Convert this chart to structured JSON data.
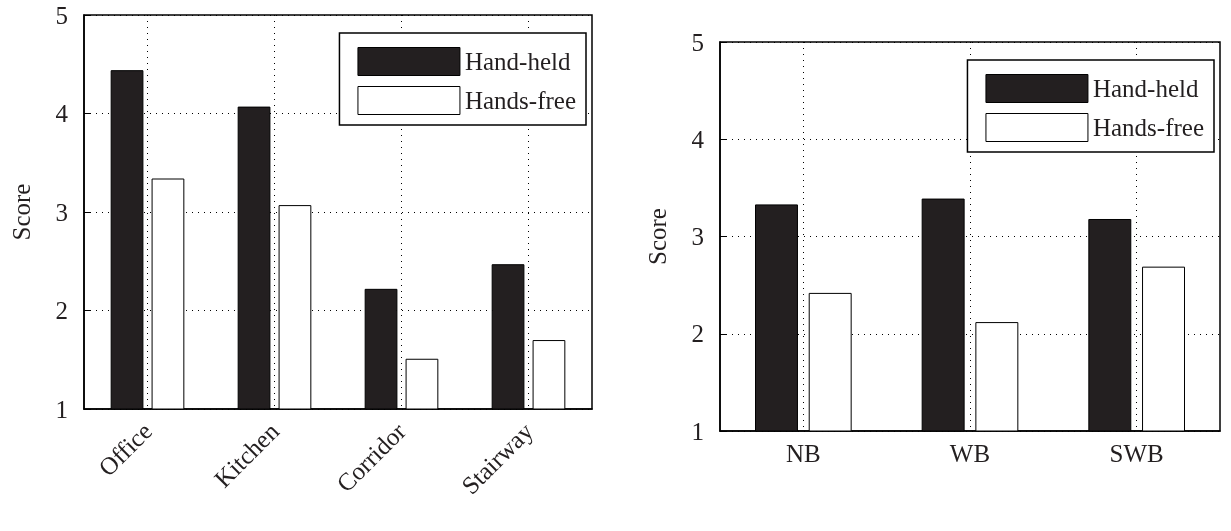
{
  "chart_data": [
    {
      "type": "bar",
      "ylabel": "Score",
      "categories": [
        "Office",
        "Kitchen",
        "Corridor",
        "Stairway"
      ],
      "series": [
        {
          "name": "Hand-held",
          "color": "#231f20",
          "values": [
            4.44,
            4.07,
            2.22,
            2.47
          ]
        },
        {
          "name": "Hands-free",
          "color": "#ffffff",
          "values": [
            3.34,
            3.07,
            1.51,
            1.7
          ]
        }
      ],
      "ylim": [
        1,
        5
      ],
      "yticks": [
        1,
        2,
        3,
        4,
        5
      ],
      "grid": true,
      "legend": "top right"
    },
    {
      "type": "bar",
      "ylabel": "Score",
      "categories": [
        "NB",
        "WB",
        "SWB"
      ],
      "series": [
        {
          "name": "Hand-held",
          "color": "#231f20",
          "values": [
            3.33,
            3.39,
            3.18
          ]
        },
        {
          "name": "Hands-free",
          "color": "#ffffff",
          "values": [
            2.42,
            2.12,
            2.69
          ]
        }
      ],
      "ylim": [
        1,
        5
      ],
      "yticks": [
        1,
        2,
        3,
        4,
        5
      ],
      "grid": true,
      "legend": "top right"
    }
  ]
}
